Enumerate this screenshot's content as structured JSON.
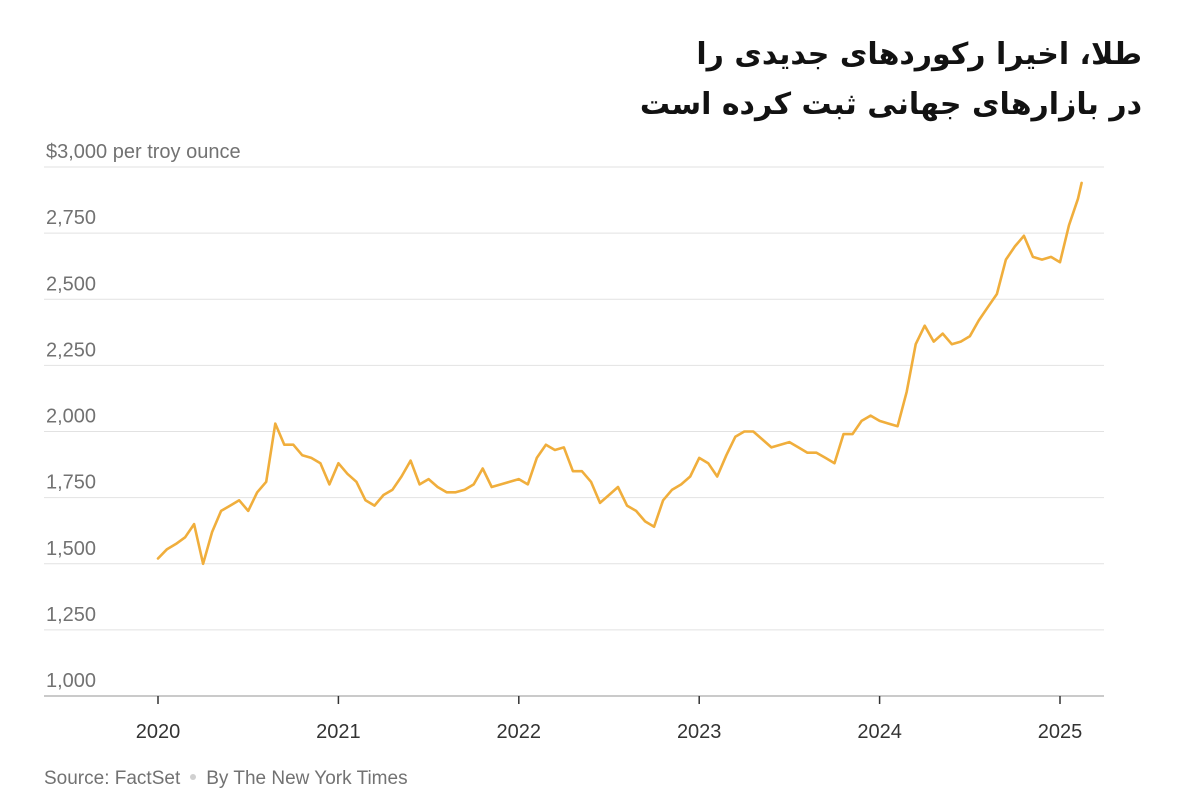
{
  "chart_data": {
    "type": "line",
    "title_lines": [
      "طلا، اخیرا رکوردهای جدیدی را",
      "در بازارهای جهانی ثبت کرده است"
    ],
    "ylabel": "$3,000 per troy ounce",
    "y_ticks": [
      1000,
      1250,
      1500,
      1750,
      2000,
      2250,
      2500,
      2750,
      3000
    ],
    "y_tick_labels": [
      "1,000",
      "1,250",
      "1,500",
      "1,750",
      "2,000",
      "2,250",
      "2,500",
      "2,750",
      "$3,000 per troy ounce"
    ],
    "x_tick_labels": [
      "2020",
      "2021",
      "2022",
      "2023",
      "2024",
      "2025"
    ],
    "x_ticks": [
      2020,
      2021,
      2022,
      2023,
      2024,
      2025
    ],
    "xlim": [
      2020,
      2025.15
    ],
    "ylim": [
      1000,
      3000
    ],
    "grid": true,
    "line_color": "#f0ae3c",
    "series": [
      {
        "x": [
          2020.0,
          2020.05,
          2020.1,
          2020.15,
          2020.2,
          2020.25,
          2020.3,
          2020.35,
          2020.4,
          2020.45,
          2020.5,
          2020.55,
          2020.6,
          2020.65,
          2020.7,
          2020.75,
          2020.8,
          2020.85,
          2020.9,
          2020.95,
          2021.0,
          2021.05,
          2021.1,
          2021.15,
          2021.2,
          2021.25,
          2021.3,
          2021.35,
          2021.4,
          2021.45,
          2021.5,
          2021.55,
          2021.6,
          2021.65,
          2021.7,
          2021.75,
          2021.8,
          2021.85,
          2021.9,
          2021.95,
          2022.0,
          2022.05,
          2022.1,
          2022.15,
          2022.2,
          2022.25,
          2022.3,
          2022.35,
          2022.4,
          2022.45,
          2022.5,
          2022.55,
          2022.6,
          2022.65,
          2022.7,
          2022.75,
          2022.8,
          2022.85,
          2022.9,
          2022.95,
          2023.0,
          2023.05,
          2023.1,
          2023.15,
          2023.2,
          2023.25,
          2023.3,
          2023.35,
          2023.4,
          2023.45,
          2023.5,
          2023.55,
          2023.6,
          2023.65,
          2023.7,
          2023.75,
          2023.8,
          2023.85,
          2023.9,
          2023.95,
          2024.0,
          2024.05,
          2024.1,
          2024.15,
          2024.2,
          2024.25,
          2024.3,
          2024.35,
          2024.4,
          2024.45,
          2024.5,
          2024.55,
          2024.6,
          2024.65,
          2024.7,
          2024.75,
          2024.8,
          2024.85,
          2024.9,
          2024.95,
          2025.0,
          2025.05,
          2025.1,
          2025.12
        ],
        "values": [
          1520,
          1555,
          1575,
          1600,
          1650,
          1500,
          1620,
          1700,
          1720,
          1740,
          1700,
          1770,
          1810,
          2030,
          1950,
          1950,
          1910,
          1900,
          1880,
          1800,
          1880,
          1840,
          1810,
          1740,
          1720,
          1760,
          1780,
          1830,
          1890,
          1800,
          1820,
          1790,
          1770,
          1770,
          1780,
          1800,
          1860,
          1790,
          1800,
          1810,
          1820,
          1800,
          1900,
          1950,
          1930,
          1940,
          1850,
          1850,
          1810,
          1730,
          1760,
          1790,
          1720,
          1700,
          1660,
          1640,
          1740,
          1780,
          1800,
          1830,
          1900,
          1880,
          1830,
          1910,
          1980,
          2000,
          2000,
          1970,
          1940,
          1950,
          1960,
          1940,
          1920,
          1920,
          1900,
          1880,
          1990,
          1990,
          2040,
          2060,
          2040,
          2030,
          2020,
          2150,
          2330,
          2400,
          2340,
          2370,
          2330,
          2340,
          2360,
          2420,
          2470,
          2520,
          2650,
          2700,
          2740,
          2660,
          2650,
          2660,
          2640,
          2780,
          2880,
          2940
        ]
      }
    ]
  },
  "footer": {
    "source": "Source: FactSet",
    "byline": "By The New York Times"
  }
}
